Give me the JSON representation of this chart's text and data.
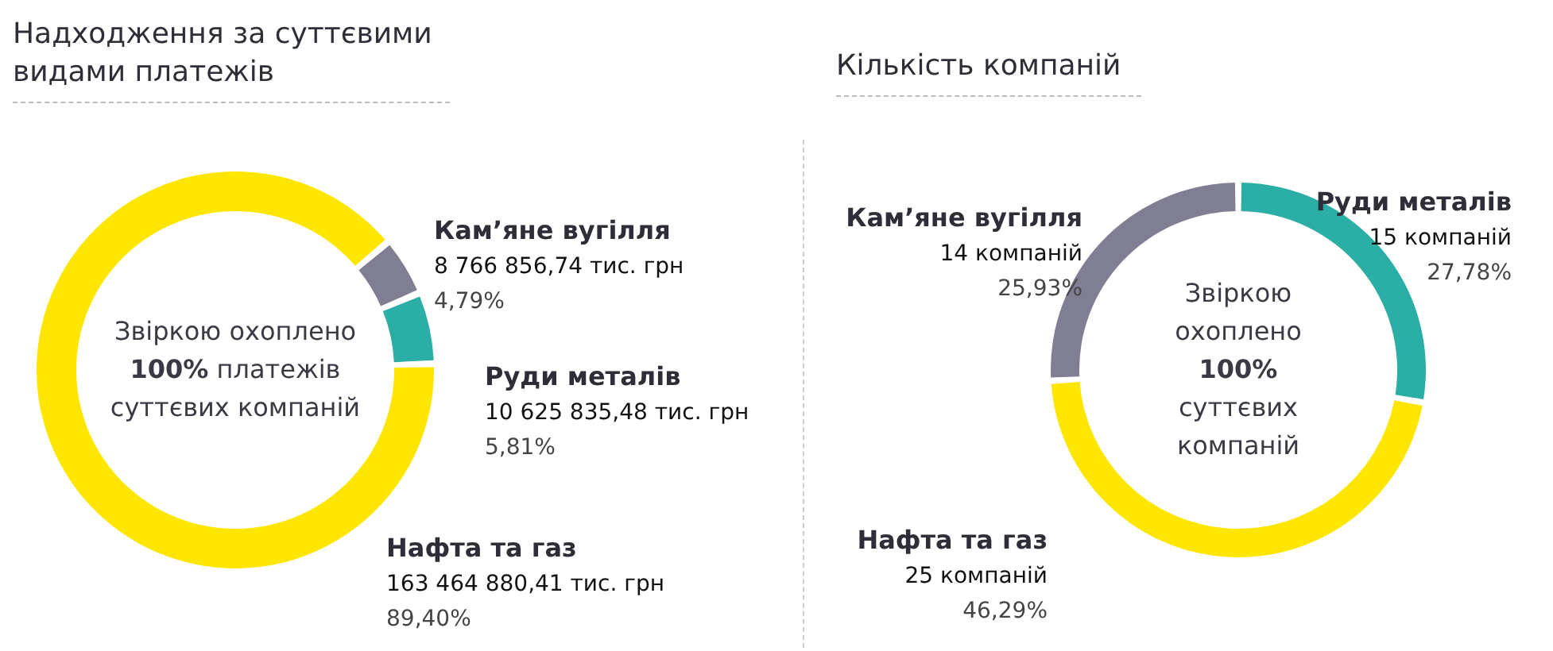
{
  "chart_data": [
    {
      "type": "donut",
      "title": "Надходження за суттєвими видами платежів",
      "categories": [
        "Кам’яне вугілля",
        "Руди металів",
        "Нафта та газ"
      ],
      "values": [
        8766856.74,
        10625835.48,
        163464880.41
      ],
      "colors": [
        "#7f7e92",
        "#2aaea6",
        "#ffe600"
      ],
      "value_labels": [
        "8 766 856,74 тис. грн\n4,79%",
        "10 625 835,48 тис. грн\n5,81%",
        "163 464 880,41 тис. грн\n89,40%"
      ],
      "annotations": [
        "Звіркою охоплено 100% платежів суттєвих компаній"
      ]
    },
    {
      "type": "donut",
      "title": "Кількість компаній",
      "categories": [
        "Руди металів",
        "Нафта та газ",
        "Кам’яне вугілля"
      ],
      "values": [
        15,
        25,
        14
      ],
      "colors": [
        "#2aaea6",
        "#ffe600",
        "#7f7e92"
      ],
      "value_labels": [
        "15 компаній\n27,78%",
        "25 компаній\n46,29%",
        "14 компаній\n25,93%"
      ],
      "annotations": [
        "Звіркою охоплено 100% суттєвих компаній"
      ]
    }
  ]
}
